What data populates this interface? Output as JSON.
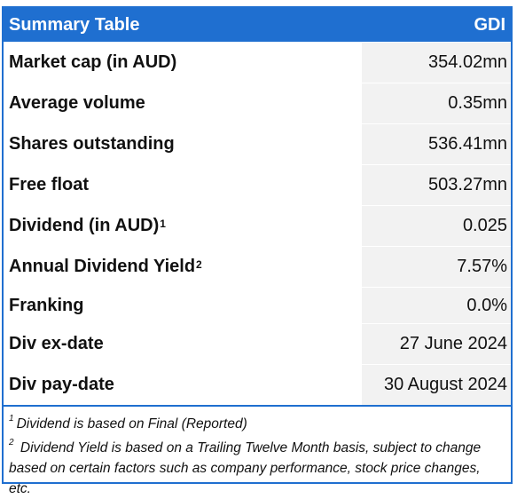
{
  "header": {
    "title": "Summary Table",
    "ticker": "GDI"
  },
  "rows": [
    {
      "label": "Market cap (in AUD)",
      "sup": "",
      "value": "354.02mn"
    },
    {
      "label": "Average volume",
      "sup": "",
      "value": "0.35mn"
    },
    {
      "label": "Shares outstanding",
      "sup": "",
      "value": "536.41mn"
    },
    {
      "label": "Free float",
      "sup": "",
      "value": "503.27mn"
    },
    {
      "label": "Dividend (in AUD)",
      "sup": "1",
      "value": "0.025"
    },
    {
      "label": "Annual Dividend Yield",
      "sup": "2",
      "value": "7.57%"
    },
    {
      "label": "Franking",
      "sup": "",
      "value": "0.0%"
    },
    {
      "label": "Div ex-date",
      "sup": "",
      "value": "27 June 2024"
    },
    {
      "label": "Div pay-date",
      "sup": "",
      "value": "30 August 2024"
    }
  ],
  "notes": [
    {
      "sup": "1",
      "text": "Dividend is based on Final (Reported)"
    },
    {
      "sup": "2",
      "text": " Dividend Yield is based on a Trailing Twelve Month basis, subject to change based on certain factors such as company performance, stock price changes, etc."
    }
  ],
  "colors": {
    "accent": "#1f6fd0",
    "value_bg": "#f2f2f2"
  }
}
